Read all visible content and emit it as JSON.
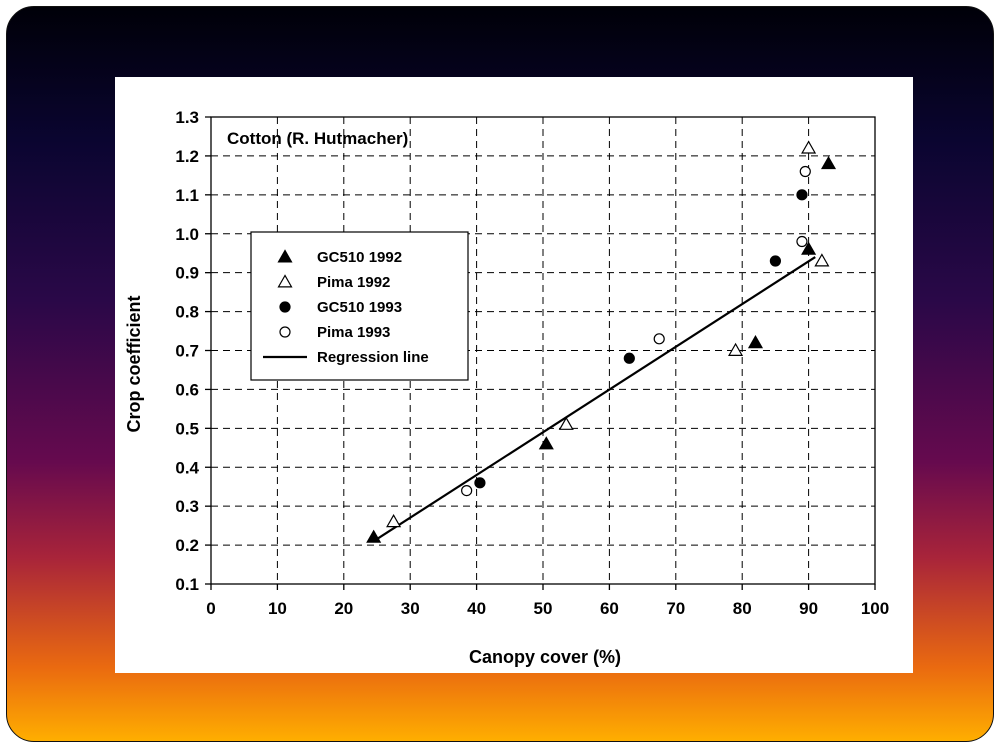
{
  "chart_data": {
    "type": "scatter",
    "title": "",
    "annotation": "Cotton (R. Hutmacher)",
    "xlabel": "Canopy cover (%)",
    "ylabel": "Crop coefficient",
    "xlim": [
      0,
      100
    ],
    "ylim": [
      0.1,
      1.3
    ],
    "xticks": [
      0,
      10,
      20,
      30,
      40,
      50,
      60,
      70,
      80,
      90,
      100
    ],
    "yticks": [
      0.1,
      0.2,
      0.3,
      0.4,
      0.5,
      0.6,
      0.7,
      0.8,
      0.9,
      1.0,
      1.1,
      1.2,
      1.3
    ],
    "ytick_labels": [
      "0.1",
      "0.2",
      "0.3",
      "0.4",
      "0.5",
      "0.6",
      "0.7",
      "0.8",
      "0.9",
      "1.0",
      "1.1",
      "1.2",
      "1.3"
    ],
    "grid": true,
    "legend_position": "left",
    "series": [
      {
        "name": "GC510 1992",
        "marker": "filled-triangle",
        "points": [
          [
            24.5,
            0.22
          ],
          [
            50.5,
            0.46
          ],
          [
            82,
            0.72
          ],
          [
            90,
            0.96
          ],
          [
            93,
            1.18
          ]
        ]
      },
      {
        "name": "Pima 1992",
        "marker": "open-triangle",
        "points": [
          [
            27.5,
            0.26
          ],
          [
            53.5,
            0.51
          ],
          [
            79,
            0.7
          ],
          [
            90,
            1.22
          ],
          [
            92,
            0.93
          ]
        ]
      },
      {
        "name": "GC510 1993",
        "marker": "filled-circle",
        "points": [
          [
            40.5,
            0.36
          ],
          [
            63,
            0.68
          ],
          [
            85,
            0.93
          ],
          [
            89,
            1.1
          ]
        ]
      },
      {
        "name": "Pima 1993",
        "marker": "open-circle",
        "points": [
          [
            38.5,
            0.34
          ],
          [
            67.5,
            0.73
          ],
          [
            89,
            0.98
          ],
          [
            89.5,
            1.16
          ]
        ]
      }
    ],
    "regression_line": {
      "name": "Regression line",
      "points": [
        [
          24.5,
          0.21
        ],
        [
          91,
          0.94
        ]
      ]
    }
  }
}
